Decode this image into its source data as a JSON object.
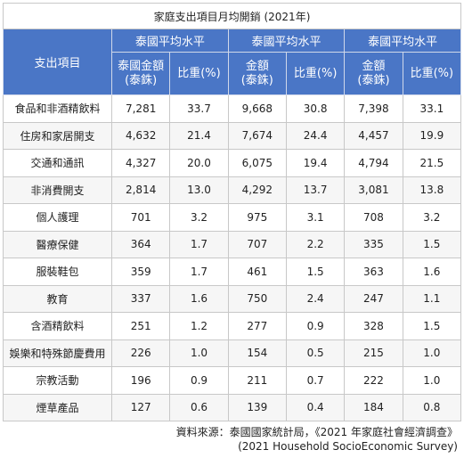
{
  "table": {
    "title": "家庭支出項目月均開銷 (2021年)",
    "row_header": "支出項目",
    "groups": [
      "泰國平均水平",
      "泰國平均水平",
      "泰國平均水平"
    ],
    "columns": [
      [
        "泰國金額",
        "(泰銖)"
      ],
      [
        "比重(%)"
      ],
      [
        "金額",
        "(泰銖)"
      ],
      [
        "比重(%)"
      ],
      [
        "金額",
        "(泰銖)"
      ],
      [
        "比重(%)"
      ]
    ],
    "rows": [
      [
        "食品和非酒精飲料",
        "7,281",
        "33.7",
        "9,668",
        "30.8",
        "7,398",
        "33.1"
      ],
      [
        "住房和家居開支",
        "4,632",
        "21.4",
        "7,674",
        "24.4",
        "4,457",
        "19.9"
      ],
      [
        "交通和通訊",
        "4,327",
        "20.0",
        "6,075",
        "19.4",
        "4,794",
        "21.5"
      ],
      [
        "非消費開支",
        "2,814",
        "13.0",
        "4,292",
        "13.7",
        "3,081",
        "13.8"
      ],
      [
        "個人護理",
        "701",
        "3.2",
        "975",
        "3.1",
        "708",
        "3.2"
      ],
      [
        "醫療保健",
        "364",
        "1.7",
        "707",
        "2.2",
        "335",
        "1.5"
      ],
      [
        "服裝鞋包",
        "359",
        "1.7",
        "461",
        "1.5",
        "363",
        "1.6"
      ],
      [
        "教育",
        "337",
        "1.6",
        "750",
        "2.4",
        "247",
        "1.1"
      ],
      [
        "含酒精飲料",
        "251",
        "1.2",
        "277",
        "0.9",
        "328",
        "1.5"
      ],
      [
        "娛樂和特殊節慶費用",
        "226",
        "1.0",
        "154",
        "0.5",
        "215",
        "1.0"
      ],
      [
        "宗教活動",
        "196",
        "0.9",
        "211",
        "0.7",
        "222",
        "1.0"
      ],
      [
        "煙草產品",
        "127",
        "0.6",
        "139",
        "0.4",
        "184",
        "0.8"
      ]
    ],
    "source": [
      "資料來源：泰國國家統計局，《2021 年家庭社會經濟調查》",
      "(2021 Household SocioEconomic Survey)"
    ]
  }
}
